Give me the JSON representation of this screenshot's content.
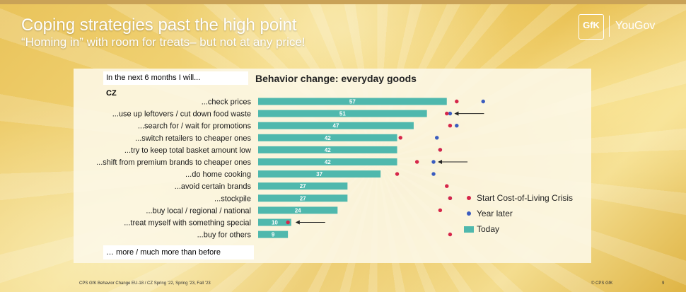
{
  "slide": {
    "title": "Coping strategies past the high point",
    "subtitle": "“Homing in” with room for treats– but not at any price!",
    "intro_box": "In the next 6 months I will...",
    "outro_box": "… more / much more than before",
    "country": "CZ",
    "footer_left": "CPS GfK Behavior Change EU-18 / CZ Spring ’22, Spring ’23, Fall ’23",
    "footer_right": "© CPS GfK",
    "page_number": "9",
    "logo_gfk": "GfK",
    "logo_yougov": "YouGov"
  },
  "chart_data": {
    "type": "bar",
    "orientation": "horizontal",
    "title": "Behavior change: everyday goods",
    "categories": [
      "...check prices",
      "...use up leftovers / cut down food waste",
      "...search for / wait for promotions",
      "...switch retailers to cheaper ones",
      "...try to keep total basket amount low",
      "...shift from premium brands to cheaper ones",
      "...do home cooking",
      "...avoid certain brands",
      "...stockpile",
      "...buy local / regional / national",
      "...treat myself with something special",
      "...buy for others"
    ],
    "series": [
      {
        "name": "Today",
        "values": [
          57,
          51,
          47,
          42,
          42,
          42,
          37,
          27,
          27,
          24,
          10,
          9
        ],
        "color": "#4fb8ad"
      },
      {
        "name": "Start Cost-of-Living Crisis",
        "values": [
          60,
          57,
          58,
          43,
          55,
          48,
          42,
          57,
          58,
          55,
          9,
          58
        ],
        "color": "#d6264a",
        "marker": "dot"
      },
      {
        "name": "Year later",
        "values": [
          68,
          58,
          60,
          54,
          55,
          53,
          53,
          null,
          58,
          null,
          null,
          null
        ],
        "color": "#3a5cbf",
        "marker": "dot"
      }
    ],
    "annotation_arrows": [
      "...use up leftovers / cut down food waste",
      "...shift from premium brands to cheaper ones",
      "...treat myself with something special"
    ],
    "legend": [
      {
        "label": "Start Cost-of-Living Crisis",
        "color": "#d6264a",
        "kind": "dot"
      },
      {
        "label": "Year later",
        "color": "#3a5cbf",
        "kind": "dot"
      },
      {
        "label": "Today",
        "color": "#4fb8ad",
        "kind": "bar"
      }
    ],
    "legend_position": "right",
    "xlim": [
      0,
      70
    ],
    "grid": false
  }
}
